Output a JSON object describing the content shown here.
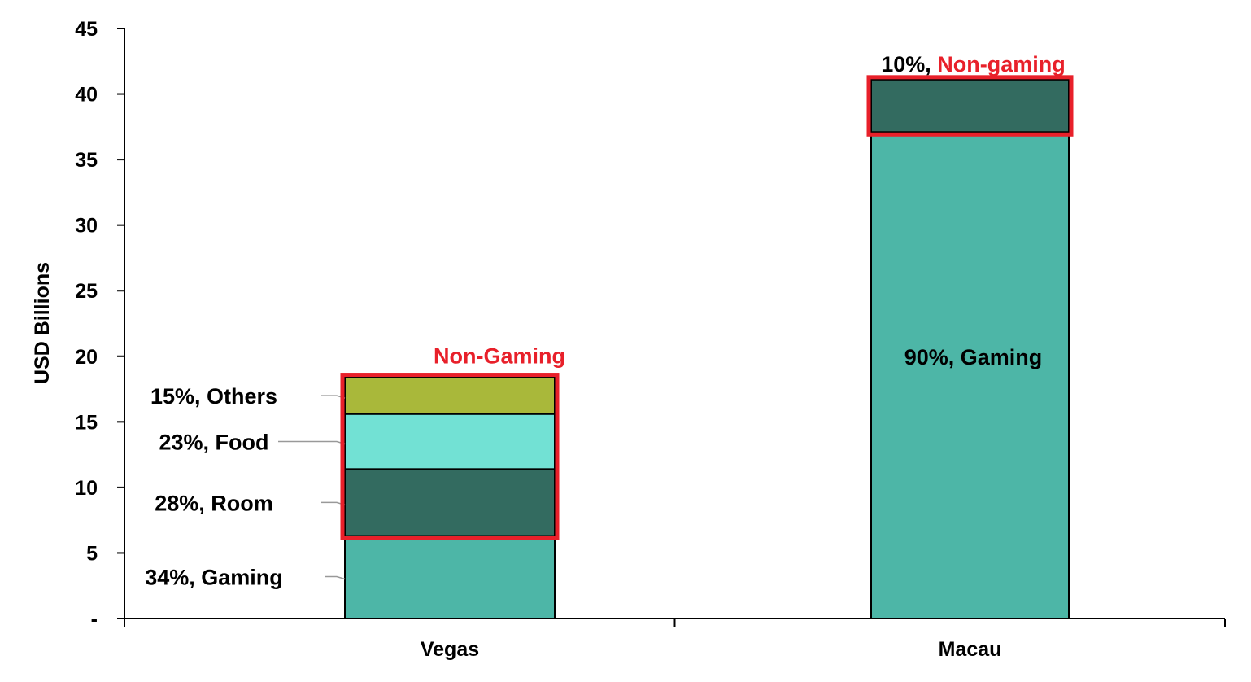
{
  "chart_data": {
    "type": "bar",
    "stacked": true,
    "categories": [
      "Vegas",
      "Macau"
    ],
    "ylabel": "USD Billions",
    "xlabel": "",
    "ylim": [
      0,
      45
    ],
    "yticks": [
      0,
      5,
      10,
      15,
      20,
      25,
      30,
      35,
      40,
      45
    ],
    "ytick_labels": [
      "-",
      "5",
      "10",
      "15",
      "20",
      "25",
      "30",
      "35",
      "40",
      "45"
    ],
    "grid": false,
    "legend": "none",
    "bars": [
      {
        "category": "Vegas",
        "segments": [
          {
            "label": "34%, Gaming",
            "value": 6.3,
            "color": "#4db6a7"
          },
          {
            "label": "28%, Room",
            "value": 5.1,
            "color": "#336b60"
          },
          {
            "label": "23%, Food",
            "value": 4.2,
            "color": "#72e1d4"
          },
          {
            "label": "15%, Others",
            "value": 2.8,
            "color": "#a9b83a"
          }
        ],
        "callout": {
          "label": "Non-Gaming",
          "color": "#e8202a"
        }
      },
      {
        "category": "Macau",
        "segments": [
          {
            "label": "90%, Gaming",
            "value": 37.1,
            "color": "#4db6a7"
          },
          {
            "label": "10%, Non-gaming",
            "value": 4.0,
            "color": "#336b60"
          }
        ],
        "callout": {
          "prefix": "10%, ",
          "label": "Non-gaming",
          "color": "#e8202a"
        }
      }
    ]
  }
}
